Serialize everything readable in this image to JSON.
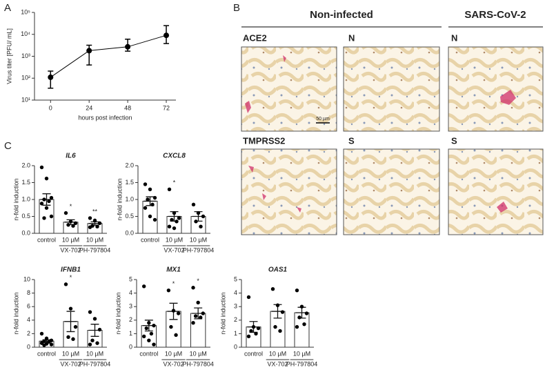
{
  "panel_labels": [
    "A",
    "B",
    "C"
  ],
  "images": {
    "headers": [
      "Non-infected",
      "SARS-CoV-2"
    ],
    "labels": [
      "ACE2",
      "N",
      "N",
      "TMPRSS2",
      "S",
      "S"
    ],
    "scale_bar": "50 µm"
  },
  "chart_data": [
    {
      "type": "line",
      "x": [
        0,
        24,
        48,
        72
      ],
      "values": [
        110,
        1800,
        2700,
        9000
      ],
      "error_low": [
        35,
        400,
        1700,
        3800
      ],
      "error_high": [
        210,
        3200,
        6000,
        25000
      ],
      "xlim": [
        -10,
        78
      ],
      "xticks": [
        0,
        24,
        48,
        72
      ],
      "ylim": [
        10,
        100000
      ],
      "yticks": [
        {
          "value": 10,
          "label": "10¹"
        },
        {
          "value": 100,
          "label": "10²"
        },
        {
          "value": 1000,
          "label": "10³"
        },
        {
          "value": 10000,
          "label": "10⁴"
        },
        {
          "value": 100000,
          "label": "10⁵"
        }
      ],
      "log_scale": true,
      "xlabel": "hours post infection",
      "ylabel": "Virus titer [PFU/ mL]",
      "color": "#000000"
    },
    {
      "type": "bar_dot",
      "title": "IL6",
      "ylabel": "n-fold induction",
      "categories": [
        "control",
        "10 µM",
        "10 µM"
      ],
      "group_labels": [
        null,
        "VX-702",
        "PH-797804"
      ],
      "values": [
        1.0,
        0.33,
        0.29
      ],
      "errors": [
        0.17,
        0.07,
        0.05
      ],
      "points": [
        [
          1.95,
          1.62,
          1.05,
          1.0,
          0.95,
          0.88,
          0.75,
          0.5,
          0.45
        ],
        [
          0.6,
          0.35,
          0.3,
          0.25,
          0.22
        ],
        [
          0.45,
          0.38,
          0.3,
          0.22,
          0.2,
          0.18
        ]
      ],
      "annotations": [
        null,
        "*",
        "**"
      ],
      "ylim": [
        0,
        2
      ],
      "yticks": [
        {
          "value": 0,
          "label": "0.0"
        },
        {
          "value": 0.5,
          "label": "0.5"
        },
        {
          "value": 1,
          "label": "1.0"
        },
        {
          "value": 1.5,
          "label": "1.5"
        },
        {
          "value": 2,
          "label": "2.0"
        }
      ]
    },
    {
      "type": "bar_dot",
      "title": "CXCL8",
      "ylabel": "n-fold induction",
      "categories": [
        "control",
        "10 µM",
        "10 µM"
      ],
      "group_labels": [
        null,
        "VX-702",
        "PH-797804"
      ],
      "values": [
        0.95,
        0.5,
        0.5
      ],
      "errors": [
        0.13,
        0.14,
        0.14
      ],
      "points": [
        [
          1.45,
          1.3,
          1.05,
          1.0,
          0.85,
          0.75,
          0.5,
          0.4
        ],
        [
          1.3,
          0.6,
          0.45,
          0.4,
          0.35,
          0.2,
          0.15
        ],
        [
          0.85,
          0.6,
          0.5,
          0.35,
          0.2
        ]
      ],
      "annotations": [
        null,
        "*",
        null
      ],
      "ylim": [
        0,
        2
      ],
      "yticks": [
        {
          "value": 0,
          "label": "0.0"
        },
        {
          "value": 0.5,
          "label": "0.5"
        },
        {
          "value": 1,
          "label": "1.0"
        },
        {
          "value": 1.5,
          "label": "1.5"
        },
        {
          "value": 2,
          "label": "2.0"
        }
      ]
    },
    {
      "type": "bar_dot",
      "title": "IFNB1",
      "ylabel": "n-fold induction",
      "categories": [
        "control",
        "10 µM",
        "10 µM"
      ],
      "group_labels": [
        null,
        "VX-702",
        "PH-797804"
      ],
      "values": [
        0.9,
        3.8,
        2.5
      ],
      "errors": [
        0.2,
        1.5,
        0.9
      ],
      "points": [
        [
          2.0,
          1.3,
          1.0,
          0.9,
          0.8,
          0.6,
          0.5,
          0.4,
          0.3
        ],
        [
          9.3,
          5.7,
          3.0,
          1.5,
          1.2
        ],
        [
          5.2,
          4.2,
          2.6,
          1.0,
          0.6,
          0.4
        ]
      ],
      "annotations": [
        null,
        "*",
        null
      ],
      "ylim": [
        0,
        10
      ],
      "yticks": [
        0,
        2,
        4,
        6,
        8,
        10
      ]
    },
    {
      "type": "bar_dot",
      "title": "MX1",
      "ylabel": "n-fold induction",
      "categories": [
        "control",
        "10 µM",
        "10 µM"
      ],
      "group_labels": [
        null,
        "VX-702",
        "PH-797804"
      ],
      "values": [
        1.6,
        2.65,
        2.5
      ],
      "errors": [
        0.4,
        0.6,
        0.4
      ],
      "points": [
        [
          4.5,
          1.8,
          1.6,
          1.4,
          1.0,
          0.8,
          0.5,
          0.2
        ],
        [
          4.2,
          2.7,
          2.5,
          1.5,
          0.9
        ],
        [
          4.4,
          3.3,
          2.5,
          2.3,
          2.2,
          1.8
        ]
      ],
      "annotations": [
        null,
        "*",
        "*"
      ],
      "ylim": [
        0,
        5
      ],
      "yticks": [
        0,
        1,
        2,
        3,
        4,
        5
      ]
    },
    {
      "type": "bar_dot",
      "title": "OAS1",
      "ylabel": "n-fold induction",
      "categories": [
        "control",
        "10 µM",
        "10 µM"
      ],
      "group_labels": [
        null,
        "VX-702",
        "PH-797804"
      ],
      "values": [
        1.5,
        2.65,
        2.55
      ],
      "errors": [
        0.4,
        0.5,
        0.4
      ],
      "points": [
        [
          3.7,
          1.5,
          1.4,
          1.2,
          1.0,
          0.8
        ],
        [
          4.3,
          3.1,
          2.6,
          1.5,
          1.2
        ],
        [
          4.2,
          3.0,
          2.5,
          2.2,
          1.7,
          1.5
        ]
      ],
      "ylim": [
        0,
        5
      ],
      "yticks": [
        0,
        1,
        2,
        3,
        4,
        5
      ]
    }
  ]
}
